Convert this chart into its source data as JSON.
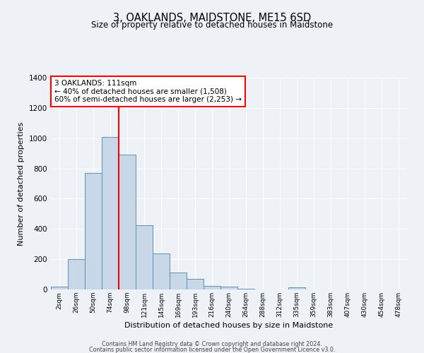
{
  "title": "3, OAKLANDS, MAIDSTONE, ME15 6SD",
  "subtitle": "Size of property relative to detached houses in Maidstone",
  "xlabel": "Distribution of detached houses by size in Maidstone",
  "ylabel": "Number of detached properties",
  "bar_labels": [
    "2sqm",
    "26sqm",
    "50sqm",
    "74sqm",
    "98sqm",
    "121sqm",
    "145sqm",
    "169sqm",
    "193sqm",
    "216sqm",
    "240sqm",
    "264sqm",
    "288sqm",
    "312sqm",
    "335sqm",
    "359sqm",
    "383sqm",
    "407sqm",
    "430sqm",
    "454sqm",
    "478sqm"
  ],
  "bar_heights": [
    20,
    200,
    770,
    1010,
    890,
    425,
    240,
    110,
    70,
    25,
    20,
    5,
    0,
    0,
    15,
    0,
    0,
    0,
    0,
    0,
    0
  ],
  "bar_color": "#c8d8e8",
  "bar_edge_color": "#6090b0",
  "vline_position": 3.5,
  "vline_color": "red",
  "annotation_title": "3 OAKLANDS: 111sqm",
  "annotation_line1": "← 40% of detached houses are smaller (1,508)",
  "annotation_line2": "60% of semi-detached houses are larger (2,253) →",
  "annotation_box_color": "white",
  "annotation_box_edge": "red",
  "ylim": [
    0,
    1400
  ],
  "yticks": [
    0,
    200,
    400,
    600,
    800,
    1000,
    1200,
    1400
  ],
  "bg_color": "#eef2f7",
  "grid_color": "white",
  "footer1": "Contains HM Land Registry data © Crown copyright and database right 2024.",
  "footer2": "Contains public sector information licensed under the Open Government Licence v3.0."
}
